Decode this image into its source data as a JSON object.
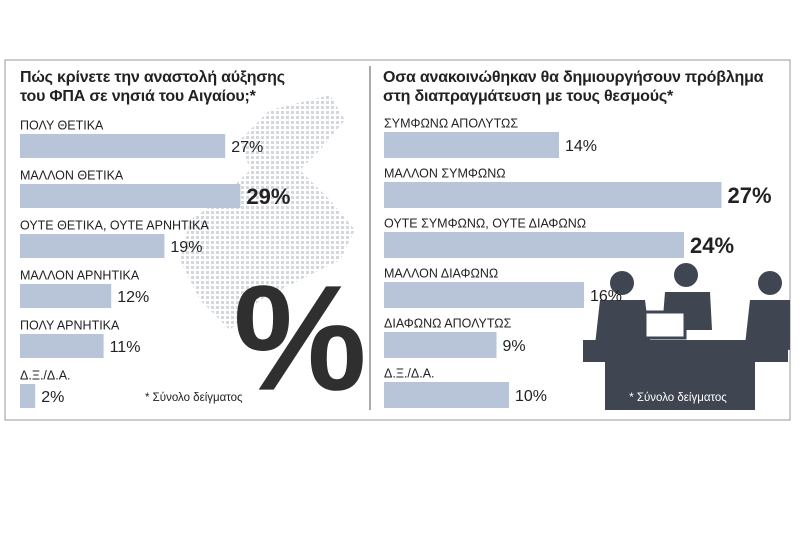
{
  "chart_data": [
    {
      "type": "bar",
      "title": "Πώς κρίνετε την αναστολή αύξησης του ΦΠΑ σε νησιά του Αιγαίου;*",
      "categories": [
        "ΠΟΛΥ ΘΕΤΙΚΑ",
        "ΜΑΛΛΟΝ ΘΕΤΙΚΑ",
        "ΟΥΤΕ ΘΕΤΙΚΑ, ΟΥΤΕ ΑΡΝΗΤΙΚΑ",
        "ΜΑΛΛΟΝ ΑΡΝΗΤΙΚΑ",
        "ΠΟΛΥ ΑΡΝΗΤΙΚΑ",
        "Δ.Ξ./Δ.Α."
      ],
      "values": [
        27,
        29,
        19,
        12,
        11,
        2
      ],
      "value_labels": [
        "27%",
        "29%",
        "19%",
        "12%",
        "11%",
        "2%"
      ],
      "highlight": [
        false,
        true,
        false,
        false,
        false,
        false
      ],
      "color": "#b8c5d8",
      "decoration": "%",
      "footnote": "* Σύνολο δείγματος"
    },
    {
      "type": "bar",
      "title": "Οσα ανακοινώθηκαν θα δημιουργήσουν πρόβλημα στη διαπραγμάτευση με τους θεσμούς*",
      "categories": [
        "ΣΥΜΦΩΝΩ ΑΠΟΛΥΤΩΣ",
        "ΜΑΛΛΟΝ ΣΥΜΦΩΝΩ",
        "ΟΥΤΕ ΣΥΜΦΩΝΩ, ΟΥΤΕ ΔΙΑΦΩΝΩ",
        "ΜΑΛΛΟΝ ΔΙΑΦΩΝΩ",
        "ΔΙΑΦΩΝΩ ΑΠΟΛΥΤΩΣ",
        "Δ.Ξ./Δ.Α."
      ],
      "values": [
        14,
        27,
        24,
        16,
        9,
        10
      ],
      "value_labels": [
        "14%",
        "27%",
        "24%",
        "16%",
        "9%",
        "10%"
      ],
      "highlight": [
        false,
        true,
        true,
        false,
        false,
        false
      ],
      "color": "#b8c5d8",
      "footnote": "* Σύνολο δείγματος"
    }
  ]
}
